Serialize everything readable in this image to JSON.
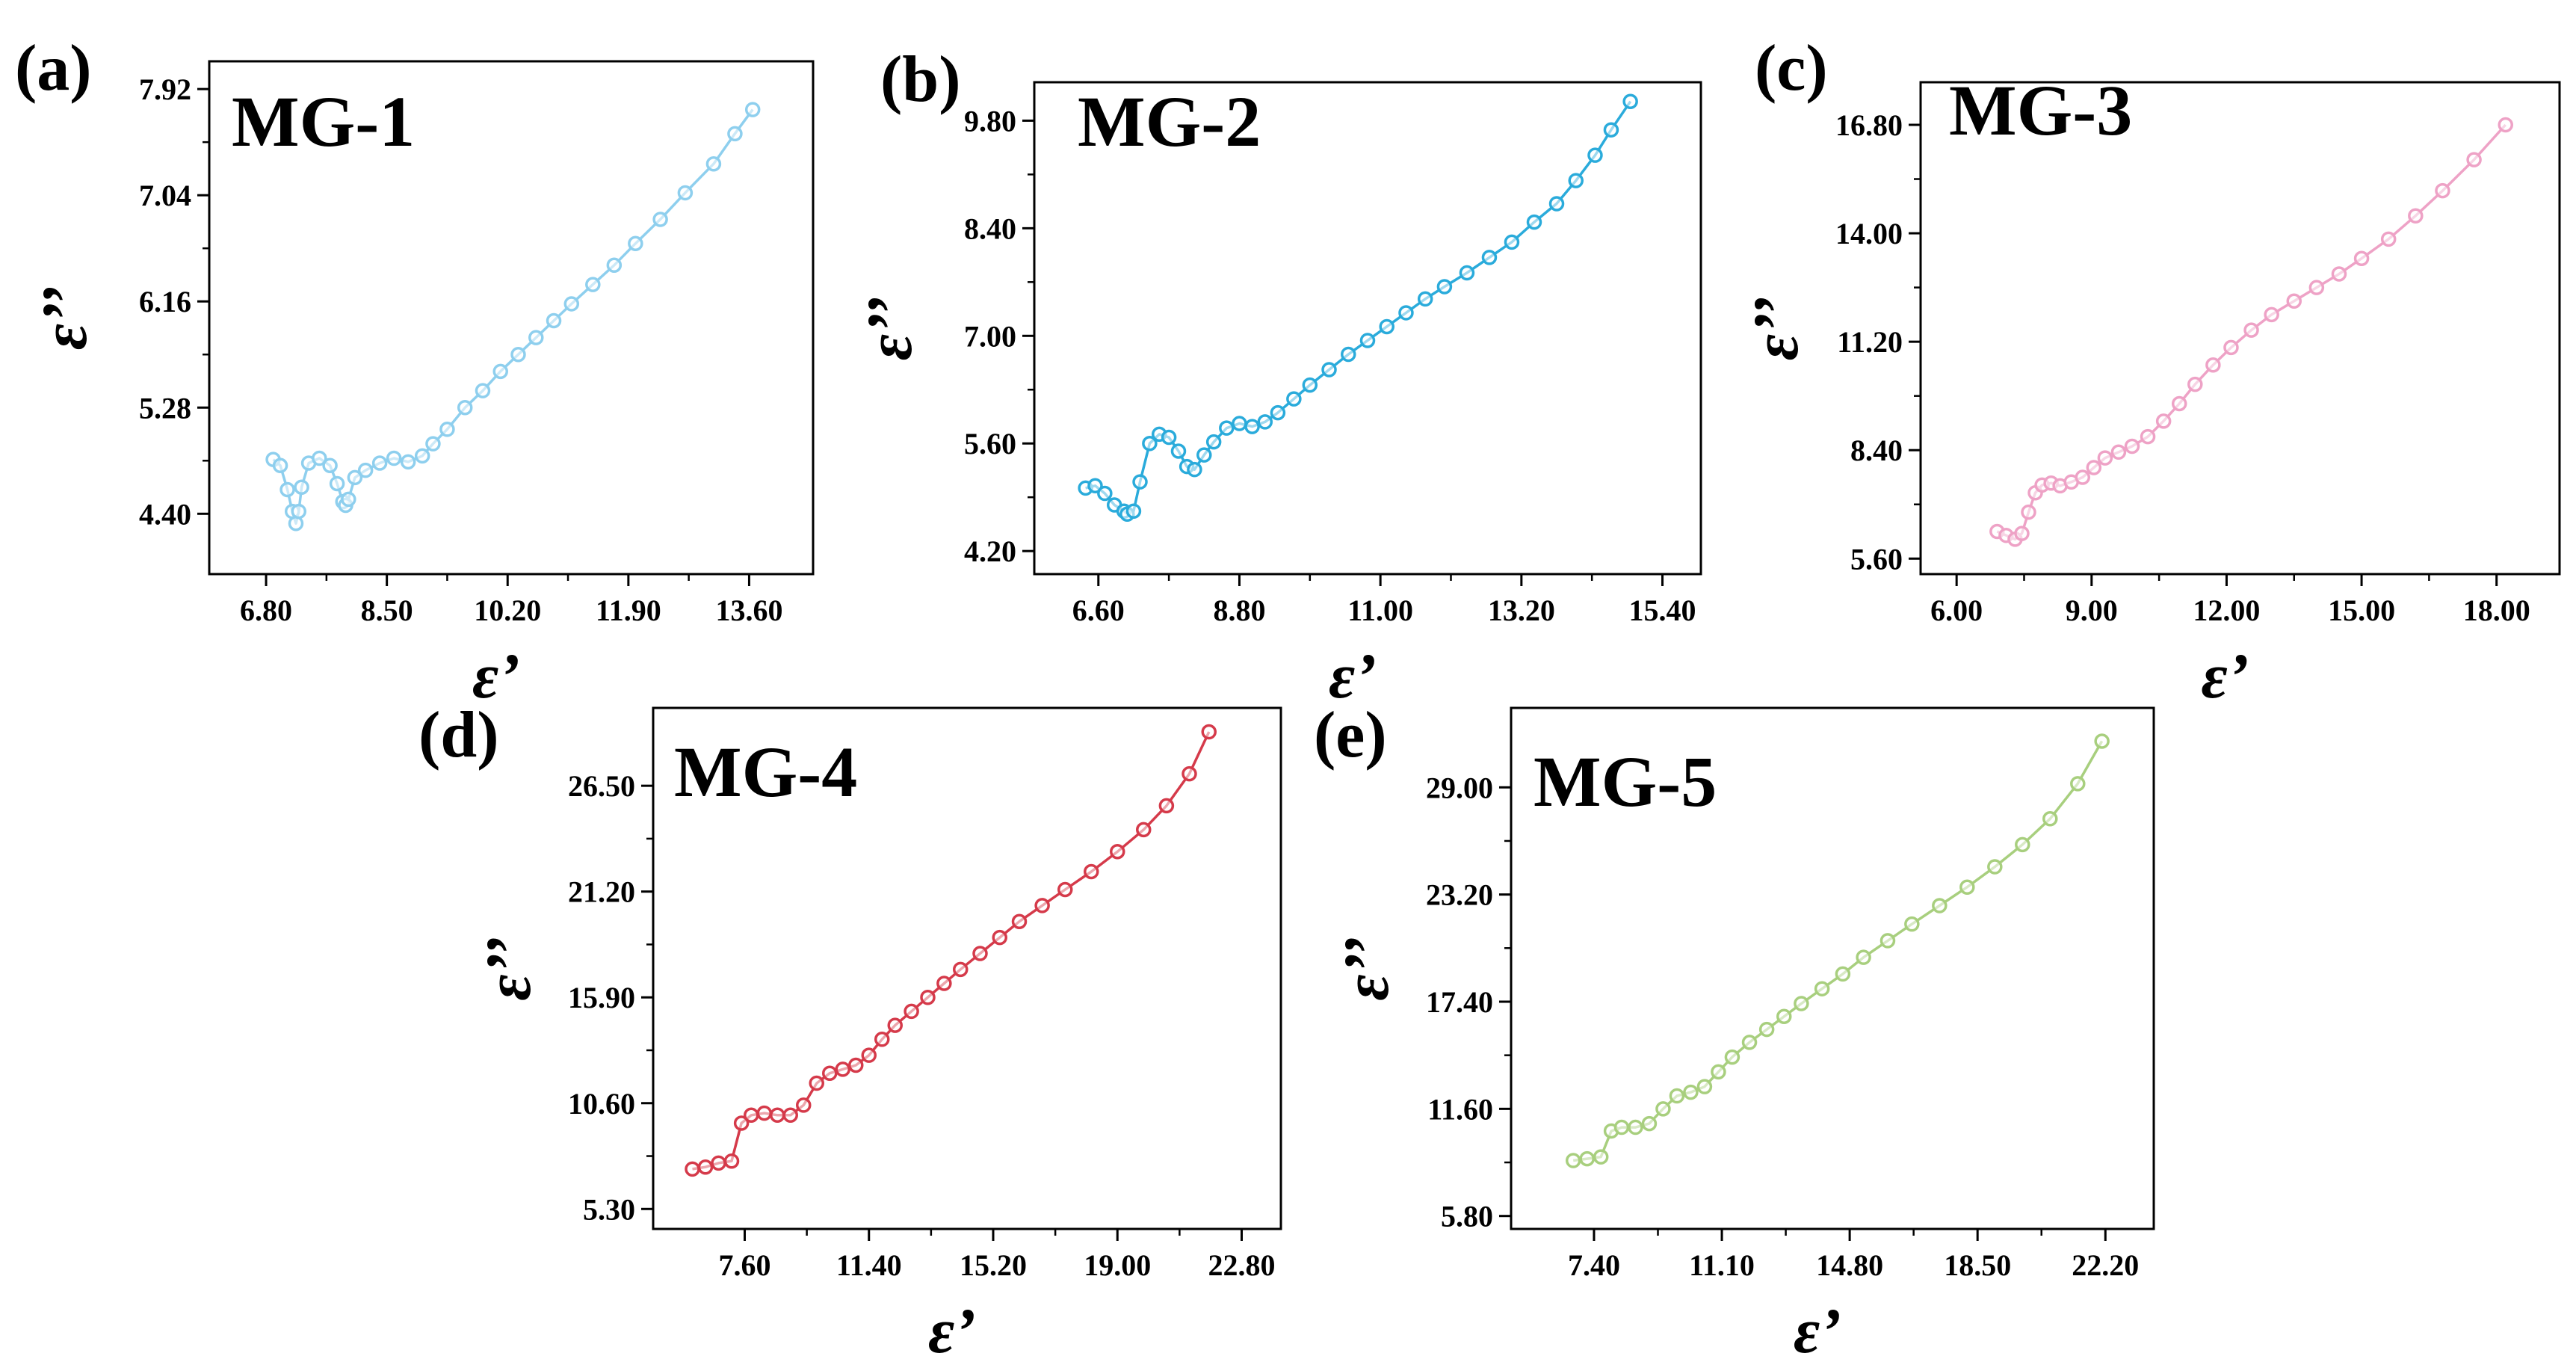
{
  "figure": {
    "type": "multi-panel Cole-Cole plots"
  },
  "chart_data": [
    {
      "panel": "(a)",
      "title": "MG-1",
      "type": "line",
      "color": "#8ecfee",
      "xlabel": "ε’",
      "ylabel": "ε’’",
      "xticks": [
        "6.80",
        "8.50",
        "10.20",
        "11.90",
        "13.60"
      ],
      "yticks": [
        "4.40",
        "5.28",
        "6.16",
        "7.04",
        "7.92"
      ],
      "xlim": [
        6.0,
        14.5
      ],
      "ylim": [
        3.9,
        8.15
      ],
      "x": [
        6.9,
        7.0,
        7.1,
        7.17,
        7.22,
        7.26,
        7.3,
        7.4,
        7.55,
        7.7,
        7.8,
        7.88,
        7.92,
        7.96,
        8.05,
        8.2,
        8.4,
        8.6,
        8.8,
        9.0,
        9.15,
        9.35,
        9.6,
        9.85,
        10.1,
        10.35,
        10.6,
        10.85,
        11.1,
        11.4,
        11.7,
        12.0,
        12.35,
        12.7,
        13.1,
        13.4,
        13.65
      ],
      "y": [
        4.85,
        4.8,
        4.6,
        4.42,
        4.32,
        4.42,
        4.62,
        4.82,
        4.86,
        4.8,
        4.65,
        4.5,
        4.47,
        4.52,
        4.7,
        4.76,
        4.82,
        4.86,
        4.83,
        4.88,
        4.98,
        5.1,
        5.28,
        5.42,
        5.58,
        5.72,
        5.86,
        6.0,
        6.14,
        6.3,
        6.46,
        6.64,
        6.84,
        7.06,
        7.3,
        7.55,
        7.75
      ]
    },
    {
      "panel": "(b)",
      "title": "MG-2",
      "type": "line",
      "color": "#2aabdb",
      "xlabel": "ε’",
      "ylabel": "ε’’",
      "xticks": [
        "6.60",
        "8.80",
        "11.00",
        "13.20",
        "15.40"
      ],
      "yticks": [
        "4.20",
        "5.60",
        "7.00",
        "8.40",
        "9.80"
      ],
      "xlim": [
        5.6,
        16.0
      ],
      "ylim": [
        3.9,
        10.3
      ],
      "x": [
        6.4,
        6.55,
        6.7,
        6.85,
        7.0,
        7.05,
        7.15,
        7.25,
        7.4,
        7.55,
        7.7,
        7.85,
        7.98,
        8.1,
        8.25,
        8.4,
        8.6,
        8.8,
        9.0,
        9.2,
        9.4,
        9.65,
        9.9,
        10.2,
        10.5,
        10.8,
        11.1,
        11.4,
        11.7,
        12.0,
        12.35,
        12.7,
        13.05,
        13.4,
        13.75,
        14.05,
        14.35,
        14.6,
        14.9
      ],
      "y": [
        5.02,
        5.05,
        4.95,
        4.8,
        4.72,
        4.68,
        4.72,
        5.1,
        5.6,
        5.72,
        5.68,
        5.5,
        5.3,
        5.26,
        5.45,
        5.62,
        5.8,
        5.86,
        5.82,
        5.88,
        6.0,
        6.18,
        6.36,
        6.56,
        6.76,
        6.94,
        7.12,
        7.3,
        7.48,
        7.64,
        7.82,
        8.02,
        8.22,
        8.48,
        8.72,
        9.02,
        9.35,
        9.68,
        10.05
      ]
    },
    {
      "panel": "(c)",
      "title": "MG-3",
      "type": "line",
      "color": "#eea2c6",
      "xlabel": "ε’",
      "ylabel": "ε’’",
      "xticks": [
        "6.00",
        "9.00",
        "12.00",
        "15.00",
        "18.00"
      ],
      "yticks": [
        "5.60",
        "8.40",
        "11.20",
        "14.00",
        "16.80"
      ],
      "xlim": [
        5.2,
        19.4
      ],
      "ylim": [
        5.2,
        17.9
      ],
      "x": [
        6.9,
        7.1,
        7.3,
        7.45,
        7.6,
        7.75,
        7.9,
        8.1,
        8.3,
        8.55,
        8.8,
        9.05,
        9.3,
        9.6,
        9.9,
        10.25,
        10.6,
        10.95,
        11.3,
        11.7,
        12.1,
        12.55,
        13.0,
        13.5,
        14.0,
        14.5,
        15.0,
        15.6,
        16.2,
        16.8,
        17.5,
        18.2
      ],
      "y": [
        6.3,
        6.2,
        6.1,
        6.25,
        6.8,
        7.3,
        7.5,
        7.55,
        7.48,
        7.58,
        7.7,
        7.95,
        8.2,
        8.35,
        8.5,
        8.75,
        9.15,
        9.6,
        10.1,
        10.6,
        11.05,
        11.5,
        11.9,
        12.25,
        12.6,
        12.95,
        13.35,
        13.85,
        14.45,
        15.1,
        15.9,
        16.8
      ]
    },
    {
      "panel": "(d)",
      "title": "MG-4",
      "type": "line",
      "color": "#d53a4a",
      "xlabel": "ε’",
      "ylabel": "ε’’",
      "xticks": [
        "7.60",
        "11.40",
        "15.20",
        "19.00",
        "22.80"
      ],
      "yticks": [
        "5.30",
        "10.60",
        "15.90",
        "21.20",
        "26.50"
      ],
      "xlim": [
        4.8,
        24.0
      ],
      "ylim": [
        4.3,
        30.4
      ],
      "x": [
        6.0,
        6.4,
        6.8,
        7.2,
        7.5,
        7.8,
        8.2,
        8.6,
        9.0,
        9.4,
        9.8,
        10.2,
        10.6,
        11.0,
        11.4,
        11.8,
        12.2,
        12.7,
        13.2,
        13.7,
        14.2,
        14.8,
        15.4,
        16.0,
        16.7,
        17.4,
        18.2,
        19.0,
        19.8,
        20.5,
        21.2,
        21.8
      ],
      "y": [
        7.3,
        7.4,
        7.6,
        7.7,
        9.6,
        10.0,
        10.1,
        10.0,
        10.0,
        10.5,
        11.6,
        12.1,
        12.3,
        12.5,
        13.0,
        13.8,
        14.5,
        15.2,
        15.9,
        16.6,
        17.3,
        18.1,
        18.9,
        19.7,
        20.5,
        21.3,
        22.2,
        23.2,
        24.3,
        25.5,
        27.1,
        29.2
      ]
    },
    {
      "panel": "(e)",
      "title": "MG-5",
      "type": "line",
      "color": "#a8cf7e",
      "xlabel": "ε’",
      "ylabel": "ε’’",
      "xticks": [
        "7.40",
        "11.10",
        "14.80",
        "18.50",
        "22.20"
      ],
      "yticks": [
        "5.80",
        "11.60",
        "17.40",
        "23.20",
        "29.00"
      ],
      "xlim": [
        5.0,
        23.6
      ],
      "ylim": [
        5.1,
        33.3
      ],
      "x": [
        6.8,
        7.2,
        7.6,
        7.9,
        8.2,
        8.6,
        9.0,
        9.4,
        9.8,
        10.2,
        10.6,
        11.0,
        11.4,
        11.9,
        12.4,
        12.9,
        13.4,
        14.0,
        14.6,
        15.2,
        15.9,
        16.6,
        17.4,
        18.2,
        19.0,
        19.8,
        20.6,
        21.4,
        22.1
      ],
      "y": [
        8.8,
        8.9,
        9.0,
        10.4,
        10.6,
        10.6,
        10.8,
        11.6,
        12.3,
        12.5,
        12.8,
        13.6,
        14.4,
        15.2,
        15.9,
        16.6,
        17.3,
        18.1,
        18.9,
        19.8,
        20.7,
        21.6,
        22.6,
        23.6,
        24.7,
        25.9,
        27.3,
        29.2,
        31.5
      ]
    }
  ]
}
